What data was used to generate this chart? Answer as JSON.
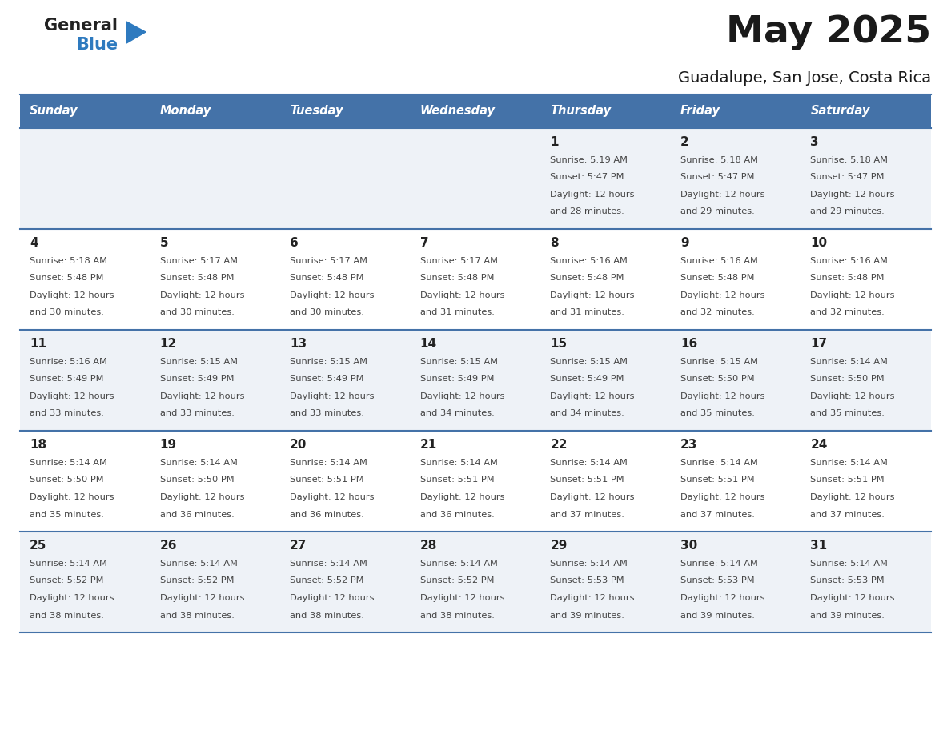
{
  "title": "May 2025",
  "subtitle": "Guadalupe, San Jose, Costa Rica",
  "days_of_week": [
    "Sunday",
    "Monday",
    "Tuesday",
    "Wednesday",
    "Thursday",
    "Friday",
    "Saturday"
  ],
  "header_bg_color": "#4472a8",
  "header_text_color": "#ffffff",
  "row_bg_color_odd": "#eef2f7",
  "row_bg_color_even": "#ffffff",
  "separator_color": "#4472a8",
  "day_number_color": "#222222",
  "cell_text_color": "#444444",
  "logo_general_color": "#222222",
  "logo_blue_color": "#2e7abf",
  "calendar": [
    [
      {
        "day": "",
        "sunrise": "",
        "sunset": "",
        "daylight": ""
      },
      {
        "day": "",
        "sunrise": "",
        "sunset": "",
        "daylight": ""
      },
      {
        "day": "",
        "sunrise": "",
        "sunset": "",
        "daylight": ""
      },
      {
        "day": "",
        "sunrise": "",
        "sunset": "",
        "daylight": ""
      },
      {
        "day": "1",
        "sunrise": "5:19 AM",
        "sunset": "5:47 PM",
        "daylight": "12 hours and 28 minutes."
      },
      {
        "day": "2",
        "sunrise": "5:18 AM",
        "sunset": "5:47 PM",
        "daylight": "12 hours and 29 minutes."
      },
      {
        "day": "3",
        "sunrise": "5:18 AM",
        "sunset": "5:47 PM",
        "daylight": "12 hours and 29 minutes."
      }
    ],
    [
      {
        "day": "4",
        "sunrise": "5:18 AM",
        "sunset": "5:48 PM",
        "daylight": "12 hours and 30 minutes."
      },
      {
        "day": "5",
        "sunrise": "5:17 AM",
        "sunset": "5:48 PM",
        "daylight": "12 hours and 30 minutes."
      },
      {
        "day": "6",
        "sunrise": "5:17 AM",
        "sunset": "5:48 PM",
        "daylight": "12 hours and 30 minutes."
      },
      {
        "day": "7",
        "sunrise": "5:17 AM",
        "sunset": "5:48 PM",
        "daylight": "12 hours and 31 minutes."
      },
      {
        "day": "8",
        "sunrise": "5:16 AM",
        "sunset": "5:48 PM",
        "daylight": "12 hours and 31 minutes."
      },
      {
        "day": "9",
        "sunrise": "5:16 AM",
        "sunset": "5:48 PM",
        "daylight": "12 hours and 32 minutes."
      },
      {
        "day": "10",
        "sunrise": "5:16 AM",
        "sunset": "5:48 PM",
        "daylight": "12 hours and 32 minutes."
      }
    ],
    [
      {
        "day": "11",
        "sunrise": "5:16 AM",
        "sunset": "5:49 PM",
        "daylight": "12 hours and 33 minutes."
      },
      {
        "day": "12",
        "sunrise": "5:15 AM",
        "sunset": "5:49 PM",
        "daylight": "12 hours and 33 minutes."
      },
      {
        "day": "13",
        "sunrise": "5:15 AM",
        "sunset": "5:49 PM",
        "daylight": "12 hours and 33 minutes."
      },
      {
        "day": "14",
        "sunrise": "5:15 AM",
        "sunset": "5:49 PM",
        "daylight": "12 hours and 34 minutes."
      },
      {
        "day": "15",
        "sunrise": "5:15 AM",
        "sunset": "5:49 PM",
        "daylight": "12 hours and 34 minutes."
      },
      {
        "day": "16",
        "sunrise": "5:15 AM",
        "sunset": "5:50 PM",
        "daylight": "12 hours and 35 minutes."
      },
      {
        "day": "17",
        "sunrise": "5:14 AM",
        "sunset": "5:50 PM",
        "daylight": "12 hours and 35 minutes."
      }
    ],
    [
      {
        "day": "18",
        "sunrise": "5:14 AM",
        "sunset": "5:50 PM",
        "daylight": "12 hours and 35 minutes."
      },
      {
        "day": "19",
        "sunrise": "5:14 AM",
        "sunset": "5:50 PM",
        "daylight": "12 hours and 36 minutes."
      },
      {
        "day": "20",
        "sunrise": "5:14 AM",
        "sunset": "5:51 PM",
        "daylight": "12 hours and 36 minutes."
      },
      {
        "day": "21",
        "sunrise": "5:14 AM",
        "sunset": "5:51 PM",
        "daylight": "12 hours and 36 minutes."
      },
      {
        "day": "22",
        "sunrise": "5:14 AM",
        "sunset": "5:51 PM",
        "daylight": "12 hours and 37 minutes."
      },
      {
        "day": "23",
        "sunrise": "5:14 AM",
        "sunset": "5:51 PM",
        "daylight": "12 hours and 37 minutes."
      },
      {
        "day": "24",
        "sunrise": "5:14 AM",
        "sunset": "5:51 PM",
        "daylight": "12 hours and 37 minutes."
      }
    ],
    [
      {
        "day": "25",
        "sunrise": "5:14 AM",
        "sunset": "5:52 PM",
        "daylight": "12 hours and 38 minutes."
      },
      {
        "day": "26",
        "sunrise": "5:14 AM",
        "sunset": "5:52 PM",
        "daylight": "12 hours and 38 minutes."
      },
      {
        "day": "27",
        "sunrise": "5:14 AM",
        "sunset": "5:52 PM",
        "daylight": "12 hours and 38 minutes."
      },
      {
        "day": "28",
        "sunrise": "5:14 AM",
        "sunset": "5:52 PM",
        "daylight": "12 hours and 38 minutes."
      },
      {
        "day": "29",
        "sunrise": "5:14 AM",
        "sunset": "5:53 PM",
        "daylight": "12 hours and 39 minutes."
      },
      {
        "day": "30",
        "sunrise": "5:14 AM",
        "sunset": "5:53 PM",
        "daylight": "12 hours and 39 minutes."
      },
      {
        "day": "31",
        "sunrise": "5:14 AM",
        "sunset": "5:53 PM",
        "daylight": "12 hours and 39 minutes."
      }
    ]
  ]
}
